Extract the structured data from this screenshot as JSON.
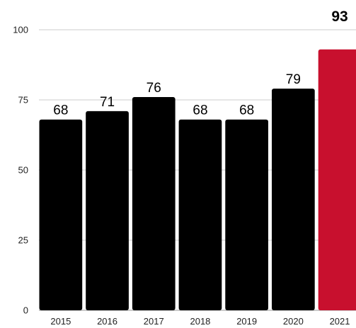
{
  "chart_data": {
    "type": "bar",
    "title": "",
    "xlabel": "",
    "ylabel": "",
    "categories": [
      "2015",
      "2016",
      "2017",
      "2018",
      "2019",
      "2020",
      "2021"
    ],
    "values": [
      68,
      71,
      76,
      68,
      68,
      79,
      93
    ],
    "value_labels": [
      "68",
      "71",
      "76",
      "68",
      "68",
      "79",
      "93"
    ],
    "ylim": [
      0,
      100
    ],
    "yticks": [
      0,
      25,
      50,
      75,
      100
    ],
    "ytick_labels": [
      "0",
      "25",
      "50",
      "75",
      "100"
    ],
    "grid": true,
    "legend": "none",
    "colors": {
      "bar": "#000000",
      "highlight_bar": "#c8102e",
      "highlight_label": "#c8102e",
      "grid": "#cccccc"
    },
    "highlight_index": 6
  }
}
